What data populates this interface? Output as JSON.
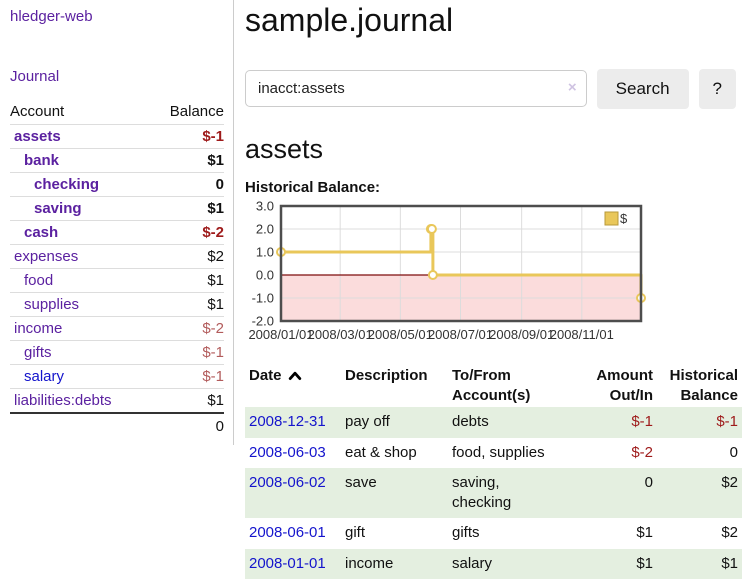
{
  "colors": {
    "purple_link": "#5b21a0",
    "blue_link": "#1414cc",
    "negative_strong": "#9e1a1a",
    "negative_muted": "#b25b5b",
    "row_highlight_green": "#e4efe0",
    "chart_gold": "#e9c75a",
    "chart_gold_border": "#b89a3a",
    "chart_pink": "#fbdcdc",
    "chart_zero_line": "#7e0c0c",
    "chart_grid": "#dcdcdc",
    "chart_border": "#4d4d4d",
    "chart_text": "#333333"
  },
  "sidebar": {
    "brand": "hledger-web",
    "nav": {
      "journal": "Journal"
    },
    "accounts": {
      "headers": {
        "account": "Account",
        "balance": "Balance"
      },
      "rows": [
        {
          "name": "assets",
          "depth": 1,
          "matched": true,
          "balance": "$-1"
        },
        {
          "name": "bank",
          "depth": 2,
          "matched": true,
          "balance": "$1"
        },
        {
          "name": "checking",
          "depth": 3,
          "matched": true,
          "balance": "0"
        },
        {
          "name": "saving",
          "depth": 3,
          "matched": true,
          "balance": "$1"
        },
        {
          "name": "cash",
          "depth": 2,
          "matched": true,
          "balance": "$-2"
        },
        {
          "name": "expenses",
          "depth": 1,
          "matched": false,
          "balance": "$2"
        },
        {
          "name": "food",
          "depth": 2,
          "matched": false,
          "balance": "$1"
        },
        {
          "name": "supplies",
          "depth": 2,
          "matched": false,
          "balance": "$1"
        },
        {
          "name": "income",
          "depth": 1,
          "matched": false,
          "balance": "$-2"
        },
        {
          "name": "gifts",
          "depth": 2,
          "matched": false,
          "balance": "$-1"
        },
        {
          "name": "salary",
          "depth": 2,
          "matched": false,
          "balance": "$-1",
          "unvisited": true
        },
        {
          "name": "liabilities:debts",
          "depth": 1,
          "matched": false,
          "balance": "$1"
        }
      ],
      "total": "0"
    }
  },
  "main": {
    "title": "sample.journal",
    "search": {
      "value": "inacct:assets",
      "clear_icon": "×",
      "button_label": "Search",
      "help_label": "?"
    },
    "account_heading": "assets",
    "chart_title": "Historical Balance:",
    "chart_data": {
      "type": "line",
      "step": true,
      "title": "Historical Balance",
      "series": [
        {
          "name": "$",
          "points": [
            [
              "2008-01-01",
              1
            ],
            [
              "2008-06-01",
              2
            ],
            [
              "2008-06-02",
              2
            ],
            [
              "2008-06-03",
              0
            ],
            [
              "2008-12-31",
              -1
            ]
          ]
        }
      ],
      "x_range": [
        "2008-01-01",
        "2008-12-31"
      ],
      "ylim": [
        -2.0,
        3.0
      ],
      "y_ticks": [
        3.0,
        2.0,
        1.0,
        0.0,
        -1.0,
        -2.0
      ],
      "x_ticks": [
        "2008/01/01",
        "2008/03/01",
        "2008/05/01",
        "2008/07/01",
        "2008/09/01",
        "2008/11/01"
      ],
      "legend": {
        "label": "$",
        "position": "top-right"
      },
      "grid": true,
      "negative_region_shaded": true
    },
    "register": {
      "headers": [
        "Date",
        "Description",
        "To/From Account(s)",
        "Amount Out/In",
        "Historical Balance"
      ],
      "rows": [
        {
          "date": "2008-12-31",
          "description": "pay off",
          "accounts": "debts",
          "amount": "$-1",
          "balance": "$-1",
          "highlight": true
        },
        {
          "date": "2008-06-03",
          "description": "eat & shop",
          "accounts": "food, supplies",
          "amount": "$-2",
          "balance": "0",
          "highlight": false
        },
        {
          "date": "2008-06-02",
          "description": "save",
          "accounts": "saving,\nchecking",
          "amount": "0",
          "balance": "$2",
          "highlight": true
        },
        {
          "date": "2008-06-01",
          "description": "gift",
          "accounts": "gifts",
          "amount": "$1",
          "balance": "$2",
          "highlight": false
        },
        {
          "date": "2008-01-01",
          "description": "income",
          "accounts": "salary",
          "amount": "$1",
          "balance": "$1",
          "highlight": true
        }
      ]
    }
  }
}
